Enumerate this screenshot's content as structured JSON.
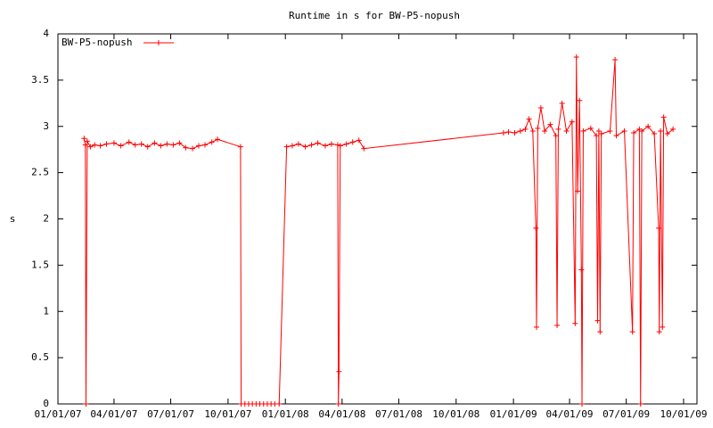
{
  "chart_data": {
    "type": "line",
    "title": "Runtime in s for BW-P5-nopush",
    "y_label": "s",
    "x": [
      "2007-02-12",
      "2007-02-14",
      "2007-02-15",
      "2007-02-17",
      "2007-02-22",
      "2007-03-01",
      "2007-03-10",
      "2007-03-20",
      "2007-04-01",
      "2007-04-12",
      "2007-04-25",
      "2007-05-05",
      "2007-05-15",
      "2007-05-25",
      "2007-06-05",
      "2007-06-15",
      "2007-06-25",
      "2007-07-05",
      "2007-07-15",
      "2007-07-25",
      "2007-08-05",
      "2007-08-15",
      "2007-08-25",
      "2007-09-05",
      "2007-09-14",
      "2007-10-21",
      "2007-10-22",
      "2007-10-28",
      "2007-11-03",
      "2007-11-09",
      "2007-11-15",
      "2007-11-21",
      "2007-11-27",
      "2007-12-03",
      "2007-12-09",
      "2007-12-15",
      "2007-12-22",
      "2008-01-03",
      "2008-01-12",
      "2008-01-22",
      "2008-02-02",
      "2008-02-12",
      "2008-02-22",
      "2008-03-05",
      "2008-03-15",
      "2008-03-25",
      "2008-03-26",
      "2008-03-27",
      "2008-03-29",
      "2008-04-08",
      "2008-04-18",
      "2008-04-28",
      "2008-05-06",
      "2008-12-16",
      "2008-12-24",
      "2009-01-03",
      "2009-01-12",
      "2009-01-20",
      "2009-01-26",
      "2009-02-01",
      "2009-02-06",
      "2009-02-07",
      "2009-02-09",
      "2009-02-14",
      "2009-02-20",
      "2009-03-01",
      "2009-03-10",
      "2009-03-12",
      "2009-03-14",
      "2009-03-20",
      "2009-03-27",
      "2009-04-05",
      "2009-04-10",
      "2009-04-12",
      "2009-04-14",
      "2009-04-17",
      "2009-04-20",
      "2009-04-21",
      "2009-04-23",
      "2009-05-05",
      "2009-05-14",
      "2009-05-16",
      "2009-05-18",
      "2009-05-20",
      "2009-05-22",
      "2009-06-05",
      "2009-06-13",
      "2009-06-15",
      "2009-06-28",
      "2009-07-11",
      "2009-07-13",
      "2009-07-22",
      "2009-07-24",
      "2009-07-26",
      "2009-08-05",
      "2009-08-15",
      "2009-08-22",
      "2009-08-23",
      "2009-08-25",
      "2009-08-28",
      "2009-08-30",
      "2009-09-05",
      "2009-09-14"
    ],
    "series": [
      {
        "name": "BW-P5-nopush",
        "color": "#ff0000",
        "values": [
          2.87,
          2.8,
          0,
          2.84,
          2.78,
          2.8,
          2.79,
          2.81,
          2.82,
          2.79,
          2.83,
          2.8,
          2.81,
          2.78,
          2.82,
          2.79,
          2.81,
          2.8,
          2.82,
          2.77,
          2.76,
          2.79,
          2.8,
          2.83,
          2.86,
          2.78,
          0,
          0,
          0,
          0,
          0,
          0,
          0,
          0,
          0,
          0,
          0,
          2.78,
          2.79,
          2.81,
          2.78,
          2.8,
          2.82,
          2.79,
          2.81,
          2.8,
          0,
          0.35,
          2.79,
          2.81,
          2.83,
          2.85,
          2.76,
          2.93,
          2.94,
          2.93,
          2.95,
          2.97,
          3.08,
          2.95,
          1.9,
          0.83,
          2.98,
          3.2,
          2.95,
          3.02,
          2.9,
          0.85,
          2.97,
          3.25,
          2.95,
          3.05,
          0.87,
          3.75,
          2.3,
          3.28,
          1.45,
          0,
          2.95,
          2.98,
          2.9,
          0.9,
          2.95,
          0.78,
          2.92,
          2.95,
          3.72,
          2.9,
          2.95,
          0.78,
          2.93,
          2.97,
          0,
          2.95,
          3.0,
          2.92,
          1.9,
          0.78,
          2.95,
          0.83,
          3.1,
          2.92,
          2.97
        ]
      }
    ],
    "xlim": [
      "2007-01-01",
      "2009-10-01"
    ],
    "xticks": [
      {
        "value": "2007-01-01",
        "label": "01/01/07"
      },
      {
        "value": "2007-04-01",
        "label": "04/01/07"
      },
      {
        "value": "2007-07-01",
        "label": "07/01/07"
      },
      {
        "value": "2007-10-01",
        "label": "10/01/07"
      },
      {
        "value": "2008-01-01",
        "label": "01/01/08"
      },
      {
        "value": "2008-04-01",
        "label": "04/01/08"
      },
      {
        "value": "2008-07-01",
        "label": "07/01/08"
      },
      {
        "value": "2008-10-01",
        "label": "10/01/08"
      },
      {
        "value": "2009-01-01",
        "label": "01/01/09"
      },
      {
        "value": "2009-04-01",
        "label": "04/01/09"
      },
      {
        "value": "2009-07-01",
        "label": "07/01/09"
      },
      {
        "value": "2009-10-01",
        "label": "10/01/09"
      }
    ],
    "ylim": [
      0,
      4
    ],
    "yticks": [
      0,
      0.5,
      1,
      1.5,
      2,
      2.5,
      3,
      3.5,
      4
    ],
    "grid": false,
    "legend": "top-left"
  }
}
